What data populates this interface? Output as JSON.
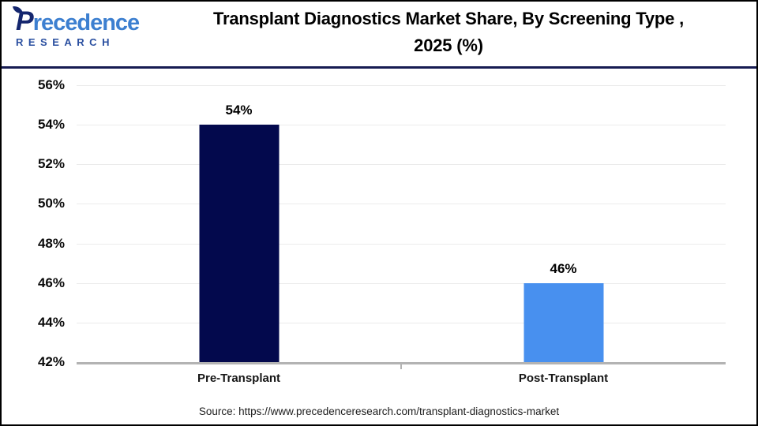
{
  "logo": {
    "brand_initial": "P",
    "brand_rest": "recedence",
    "brand_sub": "RESEARCH"
  },
  "chart_data": {
    "type": "bar",
    "title": "Transplant Diagnostics Market Share, By Screening Type , 2025 (%)",
    "title_lines": [
      "Transplant Diagnostics Market Share, By Screening Type ,",
      "2025 (%)"
    ],
    "categories": [
      "Pre-Transplant",
      "Post-Transplant"
    ],
    "values": [
      54,
      46
    ],
    "value_labels": [
      "54%",
      "46%"
    ],
    "bar_colors": [
      "#03094d",
      "#4890ef"
    ],
    "xlabel": "",
    "ylabel": "",
    "ylim": [
      42,
      56
    ],
    "ytick_step": 2,
    "ytick_suffix": "%",
    "grid": true,
    "legend": "none"
  },
  "footer": {
    "source": "Source: https://www.precedenceresearch.com/transplant-diagnostics-market"
  },
  "colors": {
    "frame_border": "#000000",
    "header_divider": "#161b52",
    "grid_line": "#ebebeb",
    "axis_line": "#b3b3b3",
    "logo_dark": "#14266e",
    "logo_blue": "#3c7fd0",
    "logo_sub_blue": "#2a4fa0"
  }
}
